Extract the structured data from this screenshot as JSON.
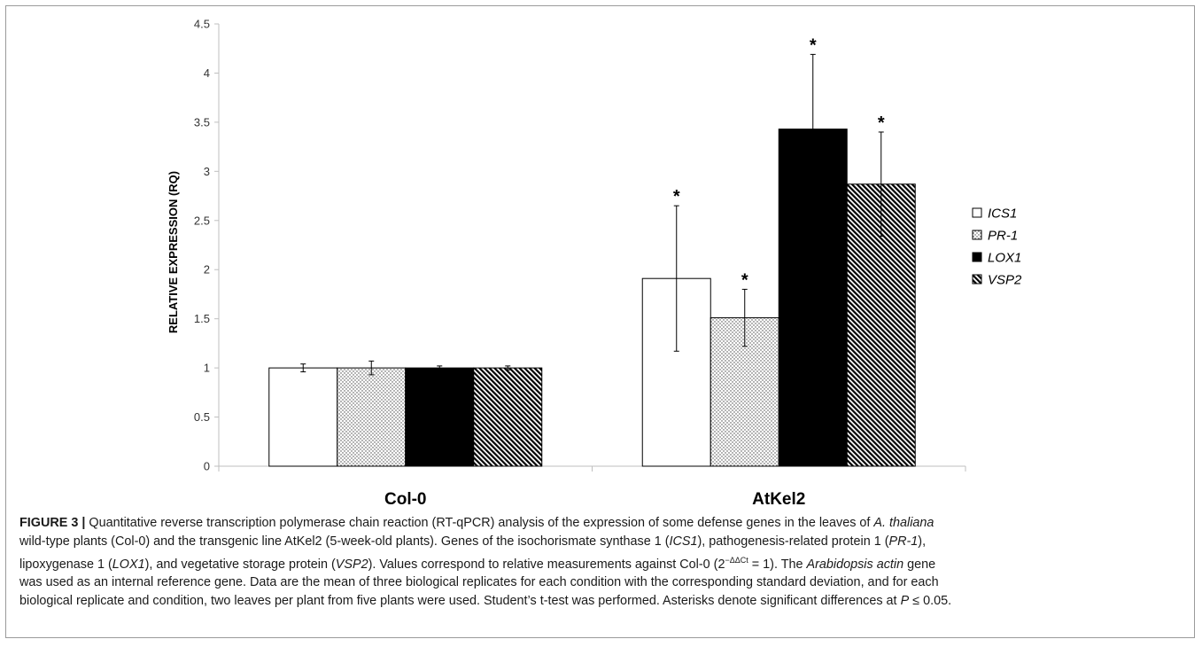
{
  "chart_data": {
    "type": "bar",
    "ylabel": "RELATIVE EXPRESSION (RQ)",
    "xlabel": "",
    "ylim": [
      0,
      4.5
    ],
    "ytick_step": 0.5,
    "yticks": [
      "0",
      "0.5",
      "1",
      "1.5",
      "2",
      "2.5",
      "3",
      "3.5",
      "4",
      "4.5"
    ],
    "categories": [
      "Col-0",
      "AtKel2"
    ],
    "series": [
      {
        "name": "ICS1",
        "pattern": "open",
        "values": [
          1.0,
          1.91
        ],
        "errors": [
          0.04,
          0.74
        ],
        "significant": [
          false,
          true
        ]
      },
      {
        "name": "PR-1",
        "pattern": "dotted",
        "values": [
          1.0,
          1.51
        ],
        "errors": [
          0.07,
          0.29
        ],
        "significant": [
          false,
          true
        ]
      },
      {
        "name": "LOX1",
        "pattern": "solid",
        "values": [
          1.0,
          3.43
        ],
        "errors": [
          0.02,
          0.76
        ],
        "significant": [
          false,
          true
        ]
      },
      {
        "name": "VSP2",
        "pattern": "hatched",
        "values": [
          1.0,
          2.87
        ],
        "errors": [
          0.02,
          0.53
        ],
        "significant": [
          false,
          true
        ]
      }
    ],
    "significance_marker": "*",
    "legend_position": "right",
    "grid": false,
    "colors": {
      "bar_fill_solid": "#000000",
      "bar_fill_open": "#ffffff",
      "stroke": "#000000",
      "axis": "#bfbfbf"
    }
  },
  "caption": {
    "label": "FIGURE 3 |",
    "lines": [
      [
        {
          "t": " Quantitative reverse transcription polymerase chain reaction (RT-qPCR) analysis of the expression of some defense genes in the leaves of "
        },
        {
          "t": "A. thaliana",
          "i": true
        }
      ],
      [
        {
          "t": "wild-type plants (Col-0) and the transgenic line AtKel2 (5-week-old plants). Genes of the isochorismate synthase 1 ("
        },
        {
          "t": "ICS1",
          "i": true
        },
        {
          "t": "), pathogenesis-related protein 1 ("
        },
        {
          "t": "PR-1",
          "i": true
        },
        {
          "t": "),"
        }
      ],
      [
        {
          "t": "lipoxygenase 1 ("
        },
        {
          "t": "LOX1",
          "i": true
        },
        {
          "t": "), and vegetative storage protein ("
        },
        {
          "t": "VSP2",
          "i": true
        },
        {
          "t": "). Values correspond to relative measurements against Col-0 (2"
        },
        {
          "t": "−ΔΔCt",
          "sup": true
        },
        {
          "t": " = 1). The "
        },
        {
          "t": "Arabidopsis actin",
          "i": true
        },
        {
          "t": " gene"
        }
      ],
      [
        {
          "t": "was used as an internal reference gene. Data are the mean of three biological replicates for each condition with the corresponding standard deviation, and for each"
        }
      ],
      [
        {
          "t": "biological replicate and condition, two leaves per plant from five plants were used. Student’s t-test was performed. Asterisks denote significant differences at "
        },
        {
          "t": "P",
          "i": true
        },
        {
          "t": " ≤ 0.05."
        }
      ]
    ]
  }
}
